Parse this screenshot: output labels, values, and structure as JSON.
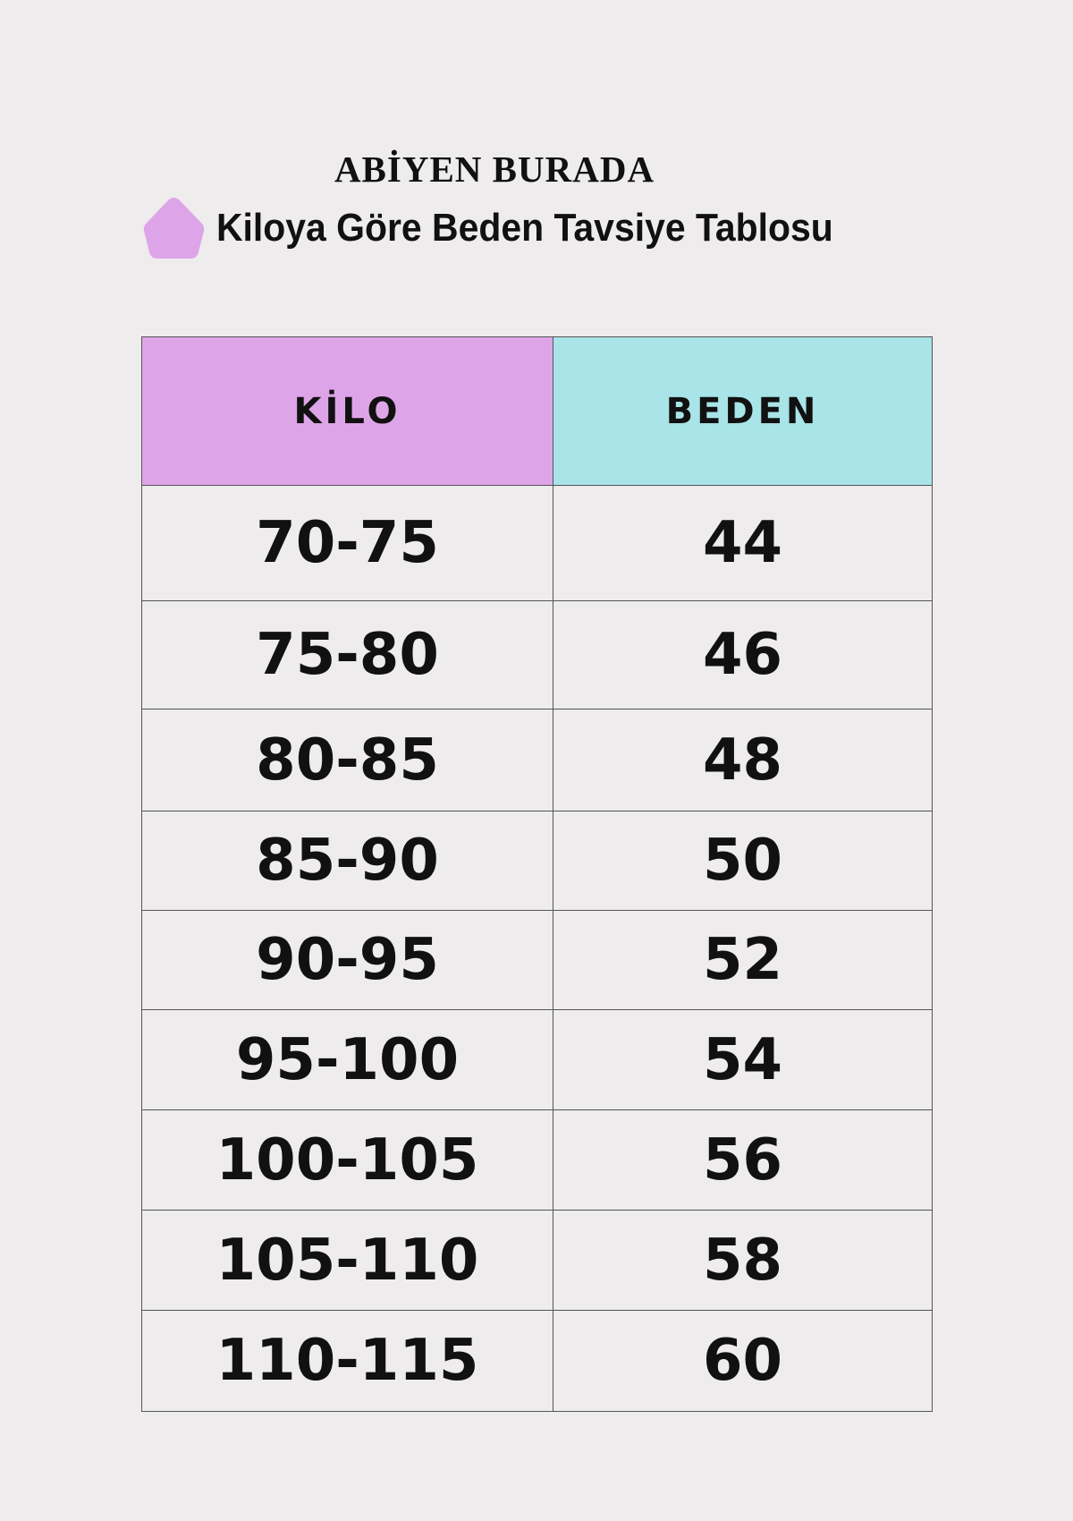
{
  "brand": "ABİYEN BURADA",
  "subtitle": "Kiloya Göre Beden Tavsiye Tablosu",
  "colors": {
    "kilo_header": "#dea4e8",
    "beden_header": "#a8e4e8",
    "background": "#eeecec",
    "pentagon": "#dea4e8"
  },
  "table": {
    "headers": [
      "KİLO",
      "BEDEN"
    ],
    "rows": [
      {
        "kilo": "70-75",
        "beden": "44"
      },
      {
        "kilo": "75-80",
        "beden": "46"
      },
      {
        "kilo": "80-85",
        "beden": "48"
      },
      {
        "kilo": "85-90",
        "beden": "50"
      },
      {
        "kilo": "90-95",
        "beden": "52"
      },
      {
        "kilo": "95-100",
        "beden": "54"
      },
      {
        "kilo": "100-105",
        "beden": "56"
      },
      {
        "kilo": "105-110",
        "beden": "58"
      },
      {
        "kilo": "110-115",
        "beden": "60"
      }
    ]
  }
}
